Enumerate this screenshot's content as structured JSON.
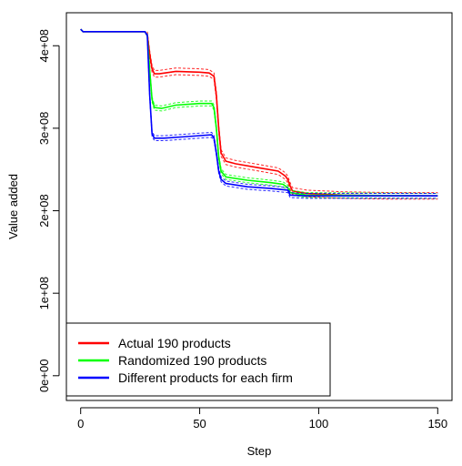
{
  "chart_data": {
    "type": "line",
    "title": "",
    "xlabel": "Step",
    "ylabel": "Value added",
    "xlim": [
      -6,
      156
    ],
    "ylim": [
      -30000000,
      440000000
    ],
    "x_ticks": [
      0,
      50,
      100,
      150
    ],
    "x_tick_labels": [
      "0",
      "50",
      "100",
      "150"
    ],
    "y_ticks": [
      0,
      100000000,
      200000000,
      300000000,
      400000000
    ],
    "y_tick_labels": [
      "0e+00",
      "1e+08",
      "2e+08",
      "3e+08",
      "4e+08"
    ],
    "grid": false,
    "legend_position": "bottom-left",
    "series": [
      {
        "name": "Actual 190 products",
        "color": "#ff0000",
        "band": 4000000,
        "points": [
          [
            0,
            420000000
          ],
          [
            1,
            417000000
          ],
          [
            27,
            417000000
          ],
          [
            28,
            413000000
          ],
          [
            29,
            390000000
          ],
          [
            30,
            372000000
          ],
          [
            31,
            366000000
          ],
          [
            33,
            366000000
          ],
          [
            40,
            369000000
          ],
          [
            50,
            368000000
          ],
          [
            54,
            367000000
          ],
          [
            56,
            363000000
          ],
          [
            57,
            340000000
          ],
          [
            58,
            300000000
          ],
          [
            59,
            270000000
          ],
          [
            61,
            260000000
          ],
          [
            65,
            257000000
          ],
          [
            75,
            252000000
          ],
          [
            83,
            248000000
          ],
          [
            86,
            242000000
          ],
          [
            87,
            238000000
          ],
          [
            88,
            230000000
          ],
          [
            89,
            224000000
          ],
          [
            95,
            221000000
          ],
          [
            110,
            219000000
          ],
          [
            130,
            218000000
          ],
          [
            150,
            218000000
          ]
        ]
      },
      {
        "name": "Randomized 190 products",
        "color": "#00ff00",
        "band": 3000000,
        "points": [
          [
            0,
            420000000
          ],
          [
            1,
            417000000
          ],
          [
            27,
            417000000
          ],
          [
            28,
            412000000
          ],
          [
            29,
            370000000
          ],
          [
            30,
            335000000
          ],
          [
            31,
            325000000
          ],
          [
            34,
            324000000
          ],
          [
            40,
            328000000
          ],
          [
            50,
            330000000
          ],
          [
            55,
            330000000
          ],
          [
            56,
            325000000
          ],
          [
            57,
            300000000
          ],
          [
            58,
            265000000
          ],
          [
            59,
            248000000
          ],
          [
            61,
            241000000
          ],
          [
            70,
            237000000
          ],
          [
            80,
            234000000
          ],
          [
            85,
            232000000
          ],
          [
            87,
            228000000
          ],
          [
            88,
            222000000
          ],
          [
            95,
            219000000
          ],
          [
            150,
            218000000
          ]
        ]
      },
      {
        "name": "Different products for each firm",
        "color": "#0000ff",
        "band": 3000000,
        "points": [
          [
            0,
            420000000
          ],
          [
            1,
            417000000
          ],
          [
            27,
            417000000
          ],
          [
            28,
            412000000
          ],
          [
            29,
            340000000
          ],
          [
            30,
            293000000
          ],
          [
            31,
            288000000
          ],
          [
            35,
            288000000
          ],
          [
            45,
            290000000
          ],
          [
            55,
            292000000
          ],
          [
            56,
            288000000
          ],
          [
            57,
            270000000
          ],
          [
            58,
            248000000
          ],
          [
            59,
            238000000
          ],
          [
            61,
            233000000
          ],
          [
            70,
            229000000
          ],
          [
            80,
            227000000
          ],
          [
            87,
            225000000
          ],
          [
            88,
            219000000
          ],
          [
            95,
            218000000
          ],
          [
            150,
            218000000
          ]
        ]
      }
    ]
  }
}
